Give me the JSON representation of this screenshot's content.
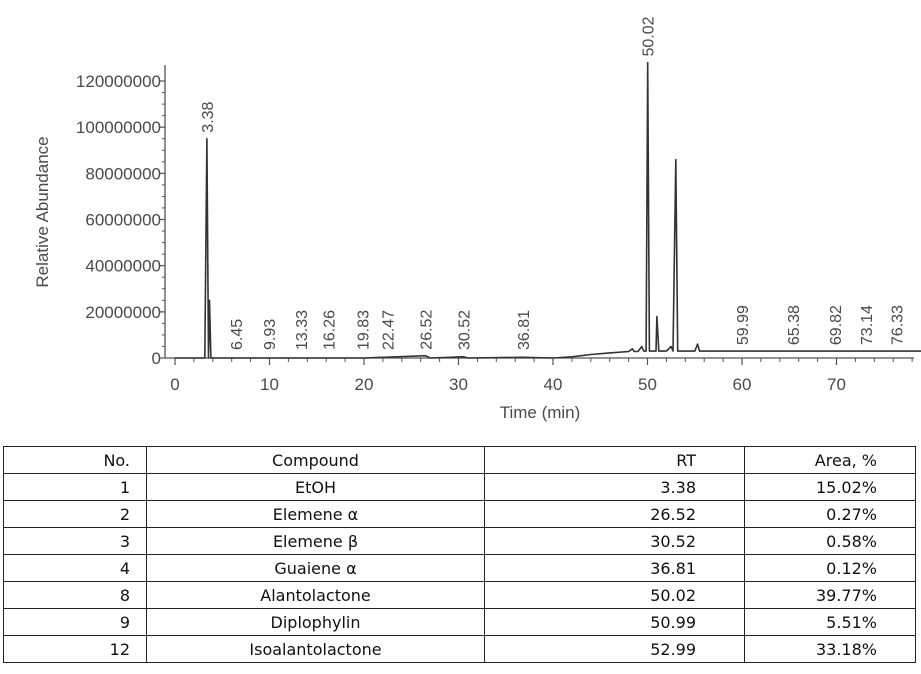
{
  "chart_data": {
    "type": "line",
    "xlabel": "Time (min)",
    "ylabel": "Relative Abundance",
    "xlim": [
      -1,
      79
    ],
    "ylim": [
      0,
      130000000
    ],
    "x_ticks": [
      "0",
      "10",
      "20",
      "30",
      "40",
      "50",
      "60",
      "70"
    ],
    "y_ticks": [
      "0",
      "20000000",
      "40000000",
      "60000000",
      "80000000",
      "100000000",
      "120000000"
    ],
    "peak_labels": [
      "3.38",
      "6.45",
      "9.93",
      "13.33",
      "16.26",
      "19.83",
      "22.47",
      "26.52",
      "30.52",
      "36.81",
      "50.02",
      "59.99",
      "65.38",
      "69.82",
      "73.14",
      "76.33"
    ],
    "series": [
      {
        "values": [
          [
            0,
            0
          ],
          [
            3.15,
            0
          ],
          [
            3.38,
            95000000
          ],
          [
            3.55,
            0
          ],
          [
            3.65,
            25000000
          ],
          [
            3.8,
            0
          ],
          [
            5,
            0
          ],
          [
            20,
            0
          ],
          [
            26.52,
            1000000
          ],
          [
            27,
            0
          ],
          [
            30.52,
            500000
          ],
          [
            31,
            0
          ],
          [
            36.81,
            300000
          ],
          [
            40,
            0
          ],
          [
            42,
            500000
          ],
          [
            44,
            1500000
          ],
          [
            46,
            2200000
          ],
          [
            48,
            2800000
          ],
          [
            48.4,
            4000000
          ],
          [
            48.6,
            2800000
          ],
          [
            49,
            2800000
          ],
          [
            49.4,
            5000000
          ],
          [
            49.6,
            3000000
          ],
          [
            49.85,
            3000000
          ],
          [
            50.02,
            128000000
          ],
          [
            50.2,
            3000000
          ],
          [
            50.9,
            3000000
          ],
          [
            50.99,
            18000000
          ],
          [
            51.2,
            3000000
          ],
          [
            52,
            3000000
          ],
          [
            52.5,
            5000000
          ],
          [
            52.7,
            3000000
          ],
          [
            52.99,
            86000000
          ],
          [
            53.2,
            3000000
          ],
          [
            55,
            3000000
          ],
          [
            55.3,
            6000000
          ],
          [
            55.5,
            3000000
          ],
          [
            60,
            3000000
          ],
          [
            79,
            3000000
          ]
        ]
      }
    ]
  },
  "table": {
    "headers": [
      "No.",
      "Compound",
      "RT",
      "Area, %"
    ],
    "rows": [
      [
        "1",
        "EtOH",
        "3.38",
        "15.02%"
      ],
      [
        "2",
        "Elemene α",
        "26.52",
        "0.27%"
      ],
      [
        "3",
        "Elemene β",
        "30.52",
        "0.58%"
      ],
      [
        "4",
        "Guaiene α",
        "36.81",
        "0.12%"
      ],
      [
        "8",
        "Alantolactone",
        "50.02",
        "39.77%"
      ],
      [
        "9",
        "Diplophylin",
        "50.99",
        "5.51%"
      ],
      [
        "12",
        "Isoalantolactone",
        "52.99",
        "33.18%"
      ]
    ]
  }
}
